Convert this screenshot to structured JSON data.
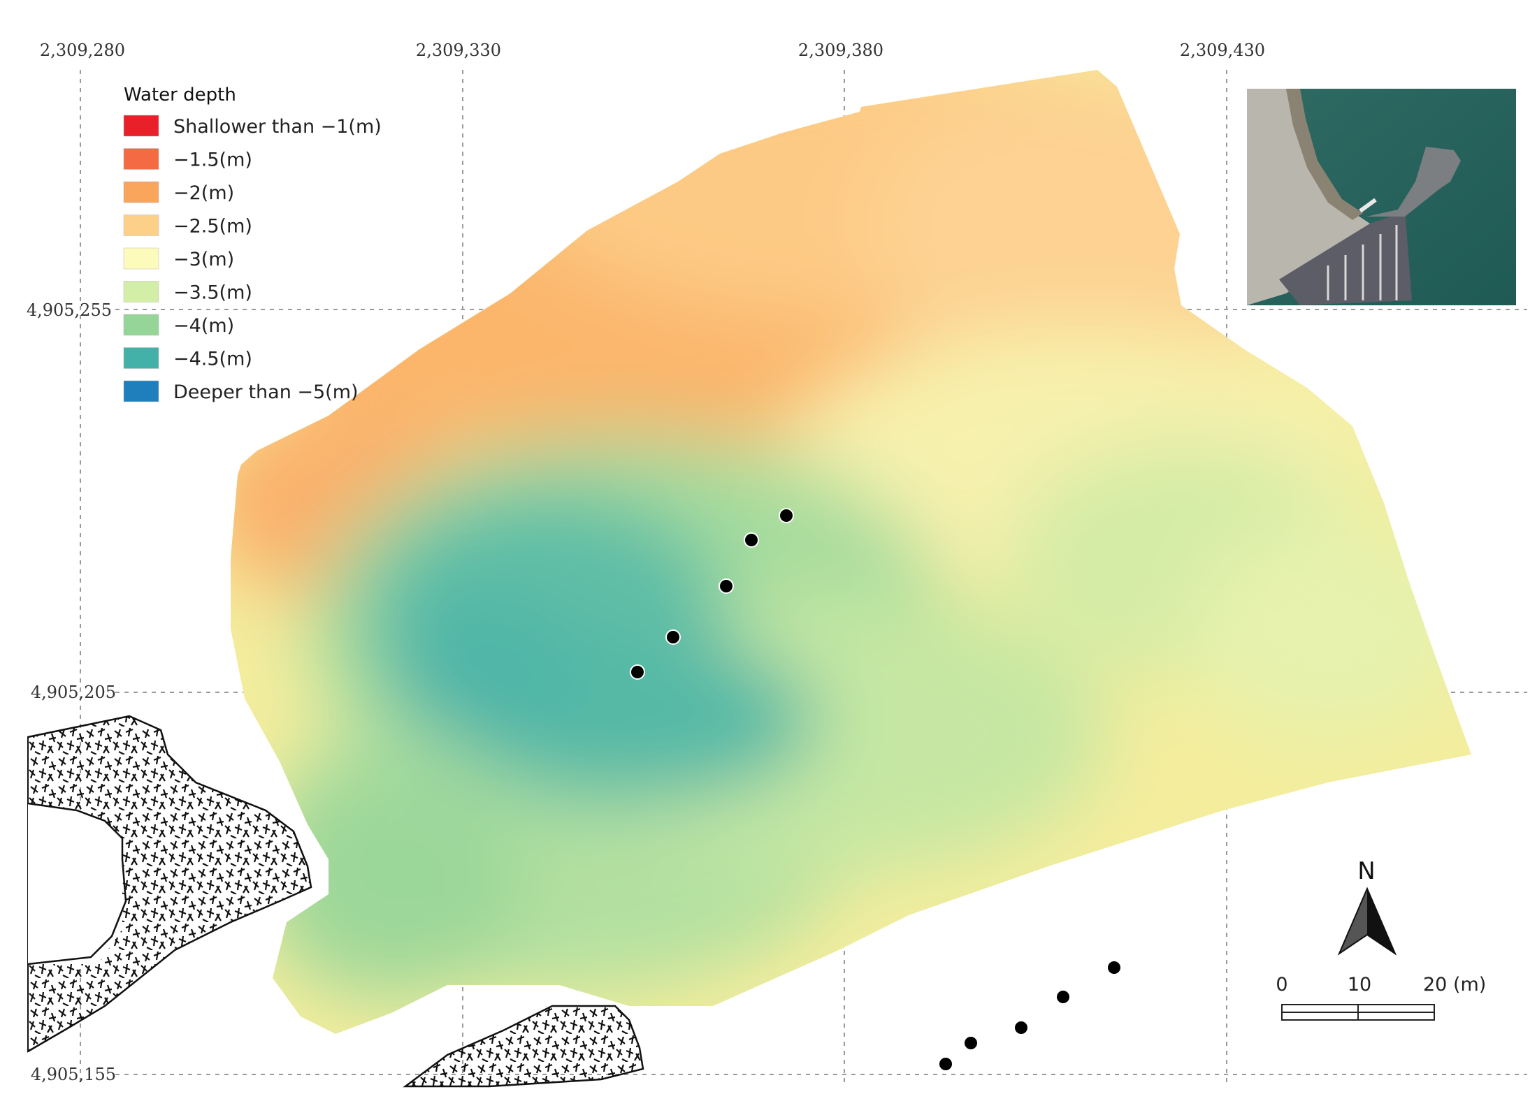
{
  "map": {
    "x_coords": [
      "2,309,280",
      "2,309,330",
      "2,309,380",
      "2,309,430"
    ],
    "y_coords": [
      "4,905,255",
      "4,905,205",
      "4,905,155"
    ],
    "grid": true
  },
  "legend": {
    "title": "Water depth",
    "items": [
      {
        "label": "Shallower than −1(m)",
        "color": "#e8202a"
      },
      {
        "label": "−1.5(m)",
        "color": "#f46a43"
      },
      {
        "label": "−2(m)",
        "color": "#faa55c"
      },
      {
        "label": "−2.5(m)",
        "color": "#fdd08a"
      },
      {
        "label": "−3(m)",
        "color": "#fcfbbc"
      },
      {
        "label": "−3.5(m)",
        "color": "#d3eea7"
      },
      {
        "label": "−4(m)",
        "color": "#95d597"
      },
      {
        "label": "−4.5(m)",
        "color": "#43b1a8"
      },
      {
        "label": "Deeper than −5(m)",
        "color": "#1f7fbd"
      }
    ]
  },
  "north_arrow": {
    "label": "N",
    "icon": "north-arrow-icon"
  },
  "scale_bar": {
    "ticks": [
      "0",
      "10",
      "20 (m)"
    ]
  },
  "inset": {
    "description_icon": "satellite-inset"
  }
}
